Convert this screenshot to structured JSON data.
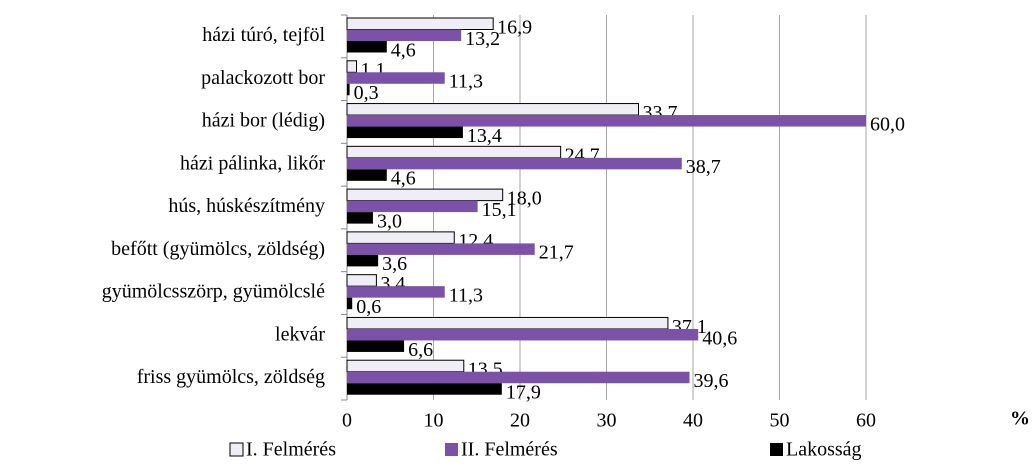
{
  "chart_data": {
    "type": "bar",
    "orientation": "horizontal",
    "categories": [
      "házi túró, tejföl",
      "palackozott bor",
      "házi bor (lédig)",
      "házi pálinka, likőr",
      "hús, húskészítmény",
      "befőtt (gyümölcs, zöldség)",
      "gyümölcsszörp, gyümölcslé",
      "lekvár",
      "friss gyümölcs, zöldség"
    ],
    "series": [
      {
        "name": "I. Felmérés",
        "color": "#efeef6",
        "values": [
          16.9,
          1.1,
          33.7,
          24.7,
          18.0,
          12.4,
          3.4,
          37.1,
          13.5
        ],
        "value_labels": [
          "16,9",
          "1,1",
          "33,7",
          "24,7",
          "18,0",
          "12,4",
          "3,4",
          "37,1",
          "13,5"
        ]
      },
      {
        "name": "II. Felmérés",
        "color": "#7b52a8",
        "values": [
          13.2,
          11.3,
          60.0,
          38.7,
          15.1,
          21.7,
          11.3,
          40.6,
          39.6
        ],
        "value_labels": [
          "13,2",
          "11,3",
          "60,0",
          "38,7",
          "15,1",
          "21,7",
          "11,3",
          "40,6",
          "39,6"
        ]
      },
      {
        "name": "Lakosság",
        "color": "#000000",
        "values": [
          4.6,
          0.3,
          13.4,
          4.6,
          3.0,
          3.6,
          0.6,
          6.6,
          17.9
        ],
        "value_labels": [
          "4,6",
          "0,3",
          "13,4",
          "4,6",
          "3,0",
          "3,6",
          "0,6",
          "6,6",
          "17,9"
        ]
      }
    ],
    "x_label": "%",
    "xlim": [
      0,
      60
    ],
    "xticks": [
      0,
      10,
      20,
      30,
      40,
      50,
      60
    ],
    "grid": true,
    "legend": "bottom"
  }
}
